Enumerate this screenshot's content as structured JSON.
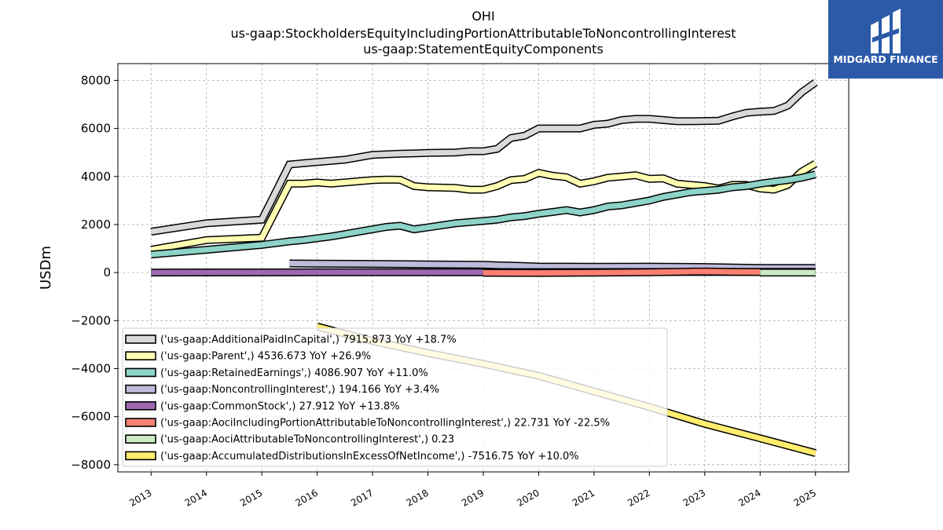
{
  "chart_data": {
    "type": "line",
    "title": [
      "OHI",
      "us-gaap:StockholdersEquityIncludingPortionAttributableToNoncontrollingInterest",
      "us-gaap:StatementEquityComponents"
    ],
    "ylabel": "USDm",
    "xlim": [
      2012.4,
      2025.6
    ],
    "ylim": [
      -8300,
      8700
    ],
    "yticks": [
      8000,
      6000,
      4000,
      2000,
      0,
      -2000,
      -4000,
      -6000,
      -8000
    ],
    "yticklabels": [
      "8000",
      "6000",
      "4000",
      "2000",
      "0",
      "−2000",
      "−4000",
      "−6000",
      "−8000"
    ],
    "xticks": [
      2013,
      2014,
      2015,
      2016,
      2017,
      2018,
      2019,
      2020,
      2021,
      2022,
      2023,
      2024,
      2025
    ],
    "xticklabels": [
      "2013",
      "2014",
      "2015",
      "2016",
      "2017",
      "2018",
      "2019",
      "2020",
      "2021",
      "2022",
      "2023",
      "2024",
      "2025"
    ],
    "grid": true,
    "legend_position": "lower-left",
    "series": [
      {
        "name": "('us-gaap:AdditionalPaidInCapital',) 7915.873 YoY +18.7%",
        "color": "#d9d9d9",
        "x": [
          2013.0,
          2014.0,
          2015.0,
          2015.5,
          2015.75,
          2016.0,
          2016.25,
          2016.5,
          2016.75,
          2017.0,
          2017.5,
          2017.75,
          2018.0,
          2018.5,
          2018.75,
          2019.0,
          2019.25,
          2019.5,
          2019.75,
          2020.0,
          2020.5,
          2020.75,
          2021.0,
          2021.25,
          2021.5,
          2021.75,
          2022.0,
          2022.25,
          2022.5,
          2022.75,
          2023.0,
          2023.25,
          2023.5,
          2023.75,
          2024.0,
          2024.25,
          2024.5,
          2024.75,
          2025.0
        ],
        "y": [
          1700,
          2050,
          2200,
          4500,
          4550,
          4600,
          4650,
          4700,
          4800,
          4900,
          4950,
          4960,
          4980,
          5000,
          5050,
          5050,
          5150,
          5600,
          5700,
          6000,
          6000,
          6000,
          6150,
          6200,
          6350,
          6400,
          6400,
          6350,
          6300,
          6300,
          6310,
          6320,
          6500,
          6650,
          6700,
          6730,
          6950,
          7500,
          7915
        ]
      },
      {
        "name": "('us-gaap:Parent',) 4536.673 YoY +26.9%",
        "color": "#ffffb3",
        "x": [
          2013.0,
          2014.0,
          2015.0,
          2015.5,
          2015.75,
          2016.0,
          2016.25,
          2016.5,
          2016.75,
          2017.0,
          2017.25,
          2017.5,
          2017.75,
          2018.0,
          2018.5,
          2018.75,
          2019.0,
          2019.25,
          2019.5,
          2019.75,
          2020.0,
          2020.25,
          2020.5,
          2020.75,
          2021.0,
          2021.25,
          2021.5,
          2021.75,
          2022.0,
          2022.25,
          2022.5,
          2022.75,
          2023.0,
          2023.25,
          2023.5,
          2023.75,
          2024.0,
          2024.25,
          2024.5,
          2024.75,
          2025.0
        ],
        "y": [
          950,
          1350,
          1450,
          3700,
          3700,
          3750,
          3700,
          3750,
          3800,
          3850,
          3870,
          3860,
          3600,
          3550,
          3520,
          3450,
          3450,
          3600,
          3850,
          3900,
          4150,
          4030,
          3970,
          3700,
          3800,
          3950,
          4000,
          4050,
          3900,
          3920,
          3700,
          3650,
          3600,
          3500,
          3650,
          3650,
          3500,
          3450,
          3650,
          4200,
          4536
        ]
      },
      {
        "name": "('us-gaap:RetainedEarnings',) 4086.907 YoY +11.0%",
        "color": "#8dd3c7",
        "x": [
          2013.0,
          2014.0,
          2015.0,
          2015.5,
          2015.75,
          2016.0,
          2016.25,
          2016.5,
          2016.75,
          2017.0,
          2017.25,
          2017.5,
          2017.75,
          2018.0,
          2018.5,
          2018.75,
          2019.0,
          2019.25,
          2019.5,
          2019.75,
          2020.0,
          2020.25,
          2020.5,
          2020.75,
          2021.0,
          2021.25,
          2021.5,
          2021.75,
          2022.0,
          2022.25,
          2022.5,
          2022.75,
          2023.0,
          2023.25,
          2023.5,
          2023.75,
          2024.0,
          2024.25,
          2024.5,
          2024.75,
          2025.0
        ],
        "y": [
          750,
          950,
          1150,
          1300,
          1350,
          1430,
          1500,
          1600,
          1700,
          1800,
          1900,
          1950,
          1800,
          1880,
          2050,
          2100,
          2150,
          2200,
          2300,
          2350,
          2450,
          2520,
          2600,
          2500,
          2600,
          2750,
          2800,
          2900,
          3000,
          3150,
          3250,
          3350,
          3400,
          3450,
          3550,
          3600,
          3700,
          3780,
          3850,
          3950,
          4086
        ]
      },
      {
        "name": "('us-gaap:NoncontrollingInterest',) 194.166 YoY +3.4%",
        "color": "#bebada",
        "x": [
          2015.5,
          2016.0,
          2017.0,
          2018.0,
          2019.0,
          2019.25,
          2019.5,
          2020.0,
          2021.0,
          2022.0,
          2023.0,
          2024.0,
          2025.0
        ],
        "y": [
          380,
          370,
          360,
          340,
          320,
          300,
          290,
          250,
          240,
          245,
          230,
          190,
          194
        ]
      },
      {
        "name": "('us-gaap:CommonStock',) 27.912 YoY +13.8%",
        "color": "#9e67b0",
        "x": [
          2013.0,
          2016.0,
          2019.0,
          2022.0,
          2025.0
        ],
        "y": [
          0,
          10,
          15,
          22,
          28
        ]
      },
      {
        "name": "('us-gaap:AociIncludingPortionAttributableToNoncontrollingInterest',) 22.731 YoY -22.5%",
        "color": "#fb8072",
        "x": [
          2019.0,
          2020.0,
          2021.0,
          2022.0,
          2023.0,
          2023.5,
          2024.0
        ],
        "y": [
          -10,
          -15,
          -5,
          10,
          45,
          30,
          23
        ]
      },
      {
        "name": "('us-gaap:AociAttributableToNoncontrollingInterest',) 0.23",
        "color": "#ccebc5",
        "x": [
          2024.0,
          2025.0
        ],
        "y": [
          0.23,
          0.23
        ]
      },
      {
        "name": "('us-gaap:AccumulatedDistributionsInExcessOfNetIncome',) -7516.75 YoY +10.0%",
        "color": "#ffed6f",
        "x": [
          2016.0,
          2017.0,
          2018.0,
          2019.0,
          2020.0,
          2021.0,
          2022.0,
          2023.0,
          2024.0,
          2025.0
        ],
        "y": [
          -2250,
          -2850,
          -3350,
          -3800,
          -4300,
          -4950,
          -5600,
          -6300,
          -6900,
          -7516
        ]
      }
    ]
  },
  "logo": {
    "text": "MIDGARD FINANCE",
    "bg": "#2c5aa8"
  }
}
